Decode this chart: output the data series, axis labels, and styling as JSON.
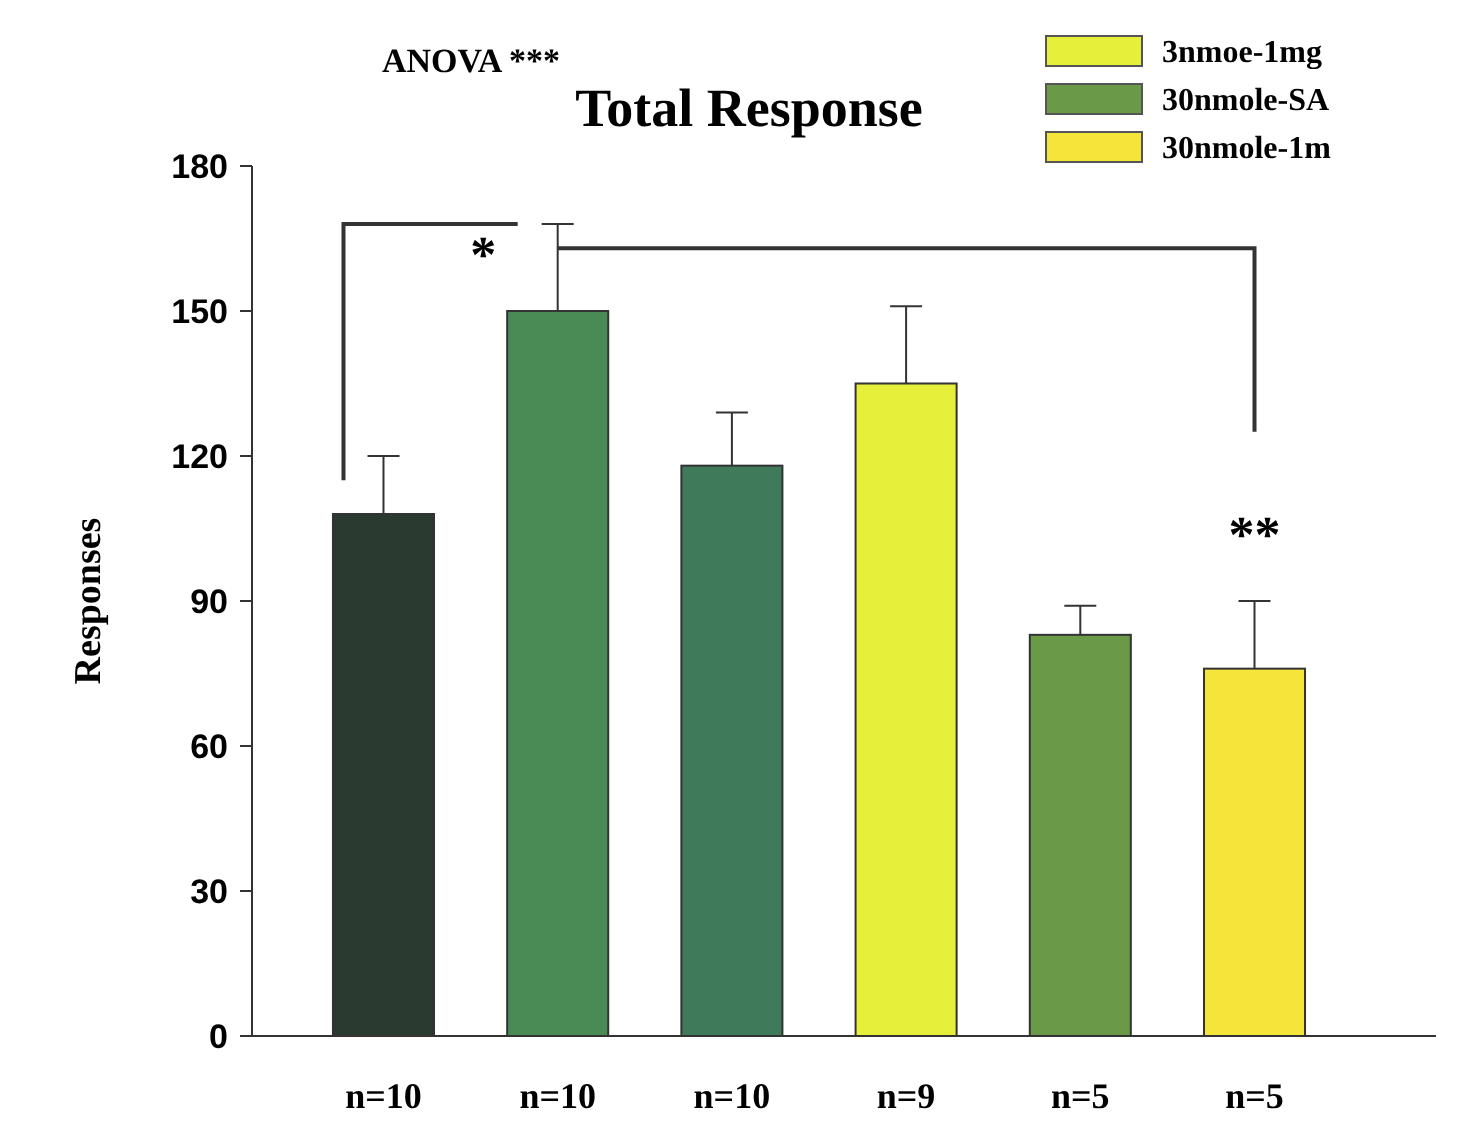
{
  "chart_data": {
    "type": "bar",
    "title": "Total Response",
    "ylabel": "Responses",
    "categories": [
      "n=10",
      "n=10",
      "n=10",
      "n=9",
      "n=5",
      "n=5"
    ],
    "series": [
      {
        "color": "#2b3a30",
        "values": [
          108,
          null,
          null,
          null,
          null,
          null
        ],
        "errors": [
          12,
          null,
          null,
          null,
          null,
          null
        ]
      },
      {
        "color": "#4a8a55",
        "values": [
          null,
          150,
          null,
          null,
          null,
          null
        ],
        "errors": [
          null,
          18,
          null,
          null,
          null,
          null
        ]
      },
      {
        "color": "#3f7a5a",
        "values": [
          null,
          null,
          118,
          null,
          null,
          null
        ],
        "errors": [
          null,
          null,
          11,
          null,
          null,
          null
        ]
      },
      {
        "name": "3nmoe-1mg",
        "color": "#e6f03a",
        "values": [
          null,
          null,
          null,
          135,
          null,
          null
        ],
        "errors": [
          null,
          null,
          null,
          16,
          null,
          null
        ]
      },
      {
        "name": "30nmole-SA",
        "color": "#6a9a48",
        "values": [
          null,
          null,
          null,
          null,
          83,
          null
        ],
        "errors": [
          null,
          null,
          null,
          null,
          6,
          null
        ]
      },
      {
        "name": "30nmole-1m",
        "color": "#f5e43a",
        "values": [
          null,
          null,
          null,
          null,
          null,
          76
        ],
        "errors": [
          null,
          null,
          null,
          null,
          null,
          14
        ]
      }
    ],
    "ylim": [
      0,
      180
    ],
    "yticks": [
      0,
      30,
      60,
      90,
      120,
      150,
      180
    ],
    "grid": false,
    "legend": "top right",
    "annotations": [
      "ANOVA ***",
      "*",
      "**"
    ]
  }
}
